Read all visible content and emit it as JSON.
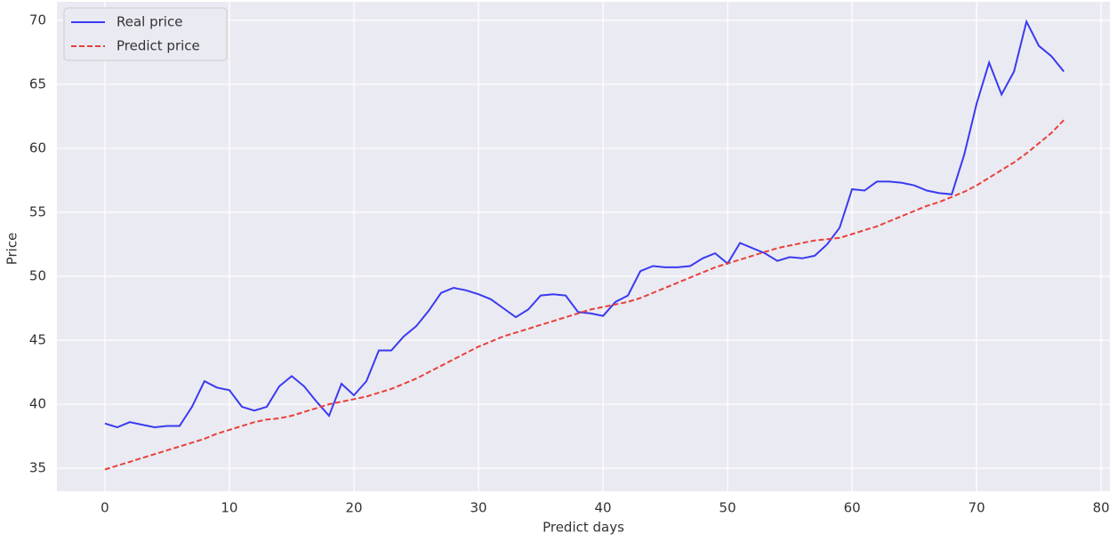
{
  "chart_data": {
    "type": "line",
    "x_label": "Predict days",
    "y_label": "Price",
    "x": [
      0,
      1,
      2,
      3,
      4,
      5,
      6,
      7,
      8,
      9,
      10,
      11,
      12,
      13,
      14,
      15,
      16,
      17,
      18,
      19,
      20,
      21,
      22,
      23,
      24,
      25,
      26,
      27,
      28,
      29,
      30,
      31,
      32,
      33,
      34,
      35,
      36,
      37,
      38,
      39,
      40,
      41,
      42,
      43,
      44,
      45,
      46,
      47,
      48,
      49,
      50,
      51,
      52,
      53,
      54,
      55,
      56,
      57,
      58,
      59,
      60,
      61,
      62,
      63,
      64,
      65,
      66,
      67,
      68,
      69,
      70,
      71,
      72,
      73,
      74,
      75,
      76,
      77
    ],
    "series": [
      {
        "name": "Real price",
        "color": "#3a3af0",
        "linestyle": "solid",
        "values": [
          38.5,
          38.2,
          38.6,
          38.4,
          38.2,
          38.3,
          38.3,
          39.8,
          41.8,
          41.3,
          41.1,
          39.8,
          39.5,
          39.8,
          41.4,
          42.2,
          41.4,
          40.2,
          39.1,
          41.6,
          40.7,
          41.8,
          44.2,
          44.2,
          45.3,
          46.1,
          47.3,
          48.7,
          49.1,
          48.9,
          48.6,
          48.2,
          47.5,
          46.8,
          47.4,
          48.5,
          48.6,
          48.5,
          47.2,
          47.1,
          46.9,
          48.0,
          48.5,
          50.4,
          50.8,
          50.7,
          50.7,
          50.8,
          51.4,
          51.8,
          51.0,
          52.6,
          52.2,
          51.8,
          51.2,
          51.5,
          51.4,
          51.6,
          52.5,
          53.8,
          56.8,
          56.7,
          57.4,
          57.4,
          57.3,
          57.1,
          56.7,
          56.5,
          56.4,
          59.5,
          63.5,
          66.7,
          64.2,
          66.0,
          69.9,
          68.0,
          67.2,
          66.0
        ]
      },
      {
        "name": "Predict price",
        "color": "#e8403a",
        "linestyle": "dashed",
        "values": [
          34.9,
          35.2,
          35.5,
          35.8,
          36.1,
          36.4,
          36.7,
          37.0,
          37.3,
          37.7,
          38.0,
          38.3,
          38.6,
          38.8,
          38.9,
          39.1,
          39.4,
          39.7,
          40.0,
          40.2,
          40.4,
          40.6,
          40.9,
          41.2,
          41.6,
          42.0,
          42.5,
          43.0,
          43.5,
          44.0,
          44.5,
          44.9,
          45.3,
          45.6,
          45.9,
          46.2,
          46.5,
          46.8,
          47.1,
          47.4,
          47.6,
          47.8,
          48.0,
          48.3,
          48.7,
          49.1,
          49.5,
          49.9,
          50.3,
          50.7,
          51.0,
          51.3,
          51.6,
          51.9,
          52.2,
          52.4,
          52.6,
          52.8,
          52.9,
          53.0,
          53.3,
          53.6,
          53.9,
          54.3,
          54.7,
          55.1,
          55.5,
          55.8,
          56.2,
          56.6,
          57.1,
          57.7,
          58.3,
          58.9,
          59.6,
          60.4,
          61.2,
          62.2
        ]
      }
    ],
    "xlim": [
      -3.85,
      80.7
    ],
    "xticks": [
      0,
      10,
      20,
      30,
      40,
      50,
      60,
      70,
      80
    ],
    "ylim": [
      33.2,
      71.45
    ],
    "yticks": [
      35,
      40,
      45,
      50,
      55,
      60,
      65,
      70
    ],
    "grid": true,
    "legend": "upper-left"
  }
}
